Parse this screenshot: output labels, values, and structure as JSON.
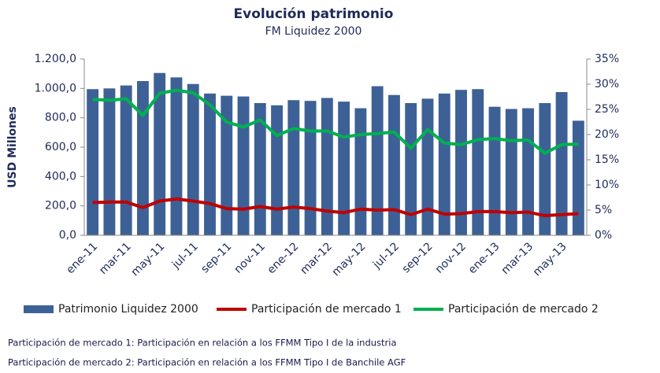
{
  "chart_data": {
    "type": "bar-line",
    "title": "Evolución patrimonio",
    "subtitle": "FM Liquidez 2000",
    "ylabel": "USD Millones",
    "categories": [
      "ene-11",
      null,
      "mar-11",
      null,
      "may-11",
      null,
      "jul-11",
      null,
      "sep-11",
      null,
      "nov-11",
      null,
      "ene-12",
      null,
      "mar-12",
      null,
      "may-12",
      null,
      "jul-12",
      null,
      "sep-12",
      null,
      "nov-12",
      null,
      "ene-13",
      null,
      "mar-13",
      null,
      "may-13",
      null
    ],
    "series": [
      {
        "name": "Patrimonio Liquidez 2000",
        "type": "bar",
        "axis": "y",
        "color": "#3d6196",
        "values": [
          995,
          1000,
          1020,
          1050,
          1105,
          1075,
          1030,
          965,
          950,
          945,
          900,
          885,
          920,
          915,
          935,
          910,
          865,
          1015,
          955,
          900,
          930,
          965,
          990,
          995,
          875,
          860,
          865,
          900,
          975,
          780
        ]
      },
      {
        "name": "Participación de mercado 1",
        "type": "line",
        "axis": "y2",
        "color": "#c00000",
        "values": [
          6.5,
          6.6,
          6.6,
          5.5,
          6.8,
          7.2,
          6.8,
          6.3,
          5.3,
          5.2,
          5.7,
          5.2,
          5.6,
          5.3,
          4.8,
          4.5,
          5.2,
          5.0,
          5.1,
          4.1,
          5.2,
          4.2,
          4.3,
          4.7,
          4.7,
          4.5,
          4.6,
          3.9,
          4.1,
          4.3
        ]
      },
      {
        "name": "Participación de mercado 2",
        "type": "line",
        "axis": "y2",
        "color": "#00b050",
        "values": [
          27.0,
          26.8,
          27.1,
          23.8,
          28.2,
          28.8,
          28.3,
          25.9,
          22.5,
          21.5,
          22.9,
          19.8,
          21.2,
          20.7,
          20.7,
          19.5,
          20.0,
          20.2,
          20.5,
          17.3,
          21.0,
          18.3,
          18.0,
          19.0,
          19.2,
          18.8,
          18.9,
          16.3,
          18.0,
          18.1
        ]
      }
    ],
    "ylim": [
      0,
      1200
    ],
    "yticks": [
      {
        "value": 0,
        "label": "0,0"
      },
      {
        "value": 200,
        "label": "200,0"
      },
      {
        "value": 400,
        "label": "400,0"
      },
      {
        "value": 600,
        "label": "600,0"
      },
      {
        "value": 800,
        "label": "800,0"
      },
      {
        "value": 1000,
        "label": "1.000,0"
      },
      {
        "value": 1200,
        "label": "1.200,0"
      }
    ],
    "y2lim": [
      0,
      35
    ],
    "y2ticks": [
      {
        "value": 0,
        "label": "0%"
      },
      {
        "value": 5,
        "label": "5%"
      },
      {
        "value": 10,
        "label": "10%"
      },
      {
        "value": 15,
        "label": "15%"
      },
      {
        "value": 20,
        "label": "20%"
      },
      {
        "value": 25,
        "label": "25%"
      },
      {
        "value": 30,
        "label": "30%"
      },
      {
        "value": 35,
        "label": "35%"
      }
    ],
    "grid": false,
    "legend": "bottom",
    "notes": [
      "Participación de mercado 1: Participación en relación a los FFMM Tipo I de la industria",
      "Participación de mercado 2: Participación en relación a los FFMM Tipo I de Banchile AGF"
    ]
  }
}
